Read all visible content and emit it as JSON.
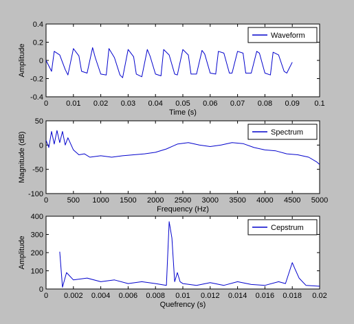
{
  "figure": {
    "background": "#c0c0c0",
    "axes_background": "#ffffff",
    "line_color": "#0000cc"
  },
  "chart_data": [
    {
      "type": "line",
      "xlabel": "Time (s)",
      "ylabel": "Amplitude",
      "xlim": [
        0,
        0.1
      ],
      "ylim": [
        -0.4,
        0.4
      ],
      "xticks": [
        0,
        0.01,
        0.02,
        0.03,
        0.04,
        0.05,
        0.06,
        0.07,
        0.08,
        0.09,
        0.1
      ],
      "xticklabels": [
        "0",
        "0.01",
        "0.02",
        "0.03",
        "0.04",
        "0.05",
        "0.06",
        "0.07",
        "0.08",
        "0.09",
        "0.1"
      ],
      "yticks": [
        -0.4,
        -0.2,
        0,
        0.2,
        0.4
      ],
      "yticklabels": [
        "-0.4",
        "-0.2",
        "0",
        "0.2",
        "0.4"
      ],
      "legend": {
        "entries": [
          "Waveform"
        ],
        "location": "top-right"
      },
      "series": [
        {
          "name": "Waveform",
          "x": [
            0,
            0.002,
            0.003,
            0.005,
            0.007,
            0.008,
            0.01,
            0.012,
            0.013,
            0.015,
            0.017,
            0.018,
            0.02,
            0.022,
            0.023,
            0.025,
            0.027,
            0.028,
            0.03,
            0.032,
            0.033,
            0.035,
            0.037,
            0.038,
            0.04,
            0.042,
            0.043,
            0.045,
            0.047,
            0.048,
            0.05,
            0.052,
            0.053,
            0.055,
            0.057,
            0.058,
            0.06,
            0.062,
            0.063,
            0.065,
            0.067,
            0.068,
            0.07,
            0.072,
            0.073,
            0.075,
            0.077,
            0.078,
            0.08,
            0.082,
            0.083,
            0.085,
            0.087,
            0.088,
            0.09
          ],
          "y": [
            0,
            -0.12,
            0.1,
            0.06,
            -0.1,
            -0.16,
            0.13,
            0.05,
            -0.12,
            -0.14,
            0.14,
            0.03,
            -0.15,
            -0.16,
            0.13,
            0.03,
            -0.16,
            -0.19,
            0.12,
            0.04,
            -0.15,
            -0.18,
            0.12,
            0.05,
            -0.15,
            -0.17,
            0.12,
            0.06,
            -0.15,
            -0.16,
            0.12,
            0.06,
            -0.15,
            -0.15,
            0.11,
            0.07,
            -0.14,
            -0.15,
            0.1,
            0.08,
            -0.14,
            -0.14,
            0.1,
            0.08,
            -0.14,
            -0.14,
            0.1,
            0.08,
            -0.14,
            -0.16,
            0.09,
            0.06,
            -0.12,
            -0.14,
            -0.02
          ]
        }
      ]
    },
    {
      "type": "line",
      "xlabel": "Frequency (Hz)",
      "ylabel": "Magnitude (dB)",
      "xlim": [
        0,
        5000
      ],
      "ylim": [
        -100,
        50
      ],
      "xticks": [
        0,
        500,
        1000,
        1500,
        2000,
        2500,
        3000,
        3500,
        4000,
        4500,
        5000
      ],
      "xticklabels": [
        "0",
        "500",
        "1000",
        "1500",
        "2000",
        "2500",
        "3000",
        "3500",
        "4000",
        "4500",
        "5000"
      ],
      "yticks": [
        -100,
        -50,
        0,
        50
      ],
      "yticklabels": [
        "-100",
        "-50",
        "0",
        "50"
      ],
      "legend": {
        "entries": [
          "Spectrum"
        ],
        "location": "top-right"
      },
      "series": [
        {
          "name": "Spectrum",
          "x": [
            0,
            50,
            100,
            150,
            200,
            250,
            300,
            350,
            400,
            500,
            600,
            700,
            800,
            1000,
            1200,
            1400,
            1600,
            1800,
            2000,
            2200,
            2400,
            2600,
            2800,
            3000,
            3200,
            3400,
            3600,
            3800,
            4000,
            4200,
            4400,
            4600,
            4800,
            4950,
            5000
          ],
          "y": [
            10,
            -5,
            28,
            2,
            30,
            5,
            28,
            0,
            15,
            -10,
            -20,
            -18,
            -25,
            -22,
            -25,
            -22,
            -20,
            -18,
            -15,
            -8,
            2,
            5,
            0,
            -3,
            0,
            5,
            3,
            -5,
            -10,
            -12,
            -18,
            -20,
            -25,
            -35,
            -40
          ]
        }
      ]
    },
    {
      "type": "line",
      "xlabel": "Quefrency (s)",
      "ylabel": "Amplitude",
      "xlim": [
        0,
        0.02
      ],
      "ylim": [
        0,
        400
      ],
      "xticks": [
        0,
        0.002,
        0.004,
        0.006,
        0.008,
        0.01,
        0.012,
        0.014,
        0.016,
        0.018,
        0.02
      ],
      "xticklabels": [
        "0",
        "0.002",
        "0.004",
        "0.006",
        "0.008",
        "0.01",
        "0.012",
        "0.014",
        "0.016",
        "0.018",
        "0.02"
      ],
      "yticks": [
        0,
        100,
        200,
        300,
        400
      ],
      "yticklabels": [
        "0",
        "100",
        "200",
        "300",
        "400"
      ],
      "legend": {
        "entries": [
          "Cepstrum"
        ],
        "location": "top-right"
      },
      "series": [
        {
          "name": "Cepstrum",
          "x": [
            0.001,
            0.0012,
            0.0015,
            0.002,
            0.003,
            0.004,
            0.005,
            0.006,
            0.007,
            0.008,
            0.0088,
            0.009,
            0.0092,
            0.0094,
            0.0096,
            0.0098,
            0.01,
            0.011,
            0.012,
            0.013,
            0.014,
            0.015,
            0.016,
            0.017,
            0.0175,
            0.018,
            0.0182,
            0.0185,
            0.019,
            0.02
          ],
          "y": [
            205,
            10,
            90,
            50,
            60,
            40,
            50,
            30,
            40,
            30,
            20,
            370,
            280,
            40,
            90,
            40,
            30,
            20,
            35,
            20,
            40,
            25,
            20,
            40,
            30,
            145,
            110,
            60,
            20,
            15
          ]
        }
      ]
    }
  ]
}
